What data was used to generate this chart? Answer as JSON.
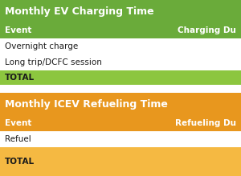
{
  "ev_title": "Monthly EV Charging Time",
  "ev_header_col1": "Event",
  "ev_header_col2": "Charging Du",
  "ev_rows": [
    "Overnight charge",
    "Long trip/DCFC session"
  ],
  "ev_total": "TOTAL",
  "icev_title": "Monthly ICEV Refueling Time",
  "icev_header_col1": "Event",
  "icev_header_col2": "Refueling Du",
  "icev_rows": [
    "Refuel"
  ],
  "icev_total": "TOTAL",
  "green_title": "#6aab3a",
  "green_header": "#6aab3a",
  "green_total": "#8cc63f",
  "orange_title": "#e8971e",
  "orange_header": "#e8971e",
  "orange_total": "#f5b942",
  "white": "#ffffff",
  "text_white": "#ffffff",
  "text_dark": "#1a1a1a",
  "gap_color": "#ffffff",
  "fig_width": 3.0,
  "fig_height": 2.2,
  "dpi": 100
}
